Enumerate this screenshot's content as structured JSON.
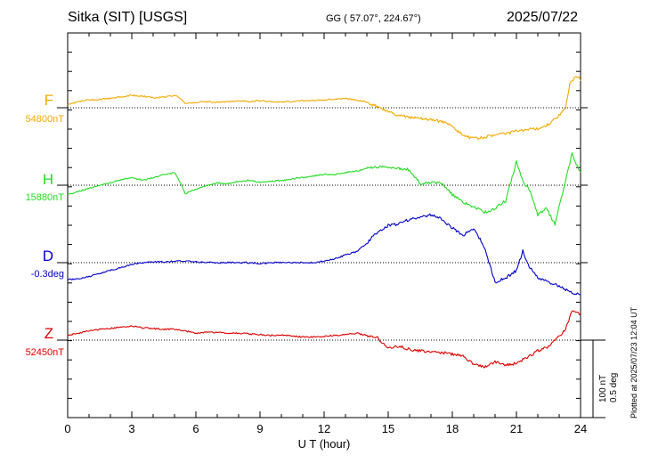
{
  "header": {
    "station": "Sitka (SIT)  [USGS]",
    "coords": "GG ( 57.07°, 224.67°)",
    "date": "2025/07/22"
  },
  "plotted_note": "Plotted at 2025/07/23 12:04 UT",
  "scale": {
    "nt": "100 nT",
    "deg": "0.5 deg"
  },
  "colors": {
    "F": "#f2a900",
    "H": "#22dd22",
    "D": "#0000cc",
    "Z": "#dd0000"
  },
  "channels": [
    {
      "letter": "F",
      "baseline": "54800nT"
    },
    {
      "letter": "H",
      "baseline": "15880nT"
    },
    {
      "letter": "D",
      "baseline": "-0.3deg"
    },
    {
      "letter": "Z",
      "baseline": "52450nT"
    }
  ],
  "chart_data": {
    "type": "line",
    "title": "Sitka (SIT)  [USGS]",
    "xlabel": "U T (hour)",
    "xlim": [
      0,
      24
    ],
    "xticks": [
      0,
      3,
      6,
      9,
      12,
      15,
      18,
      21,
      24
    ],
    "ylabel_units": [
      "nT",
      "deg"
    ],
    "grid": true,
    "series": [
      {
        "name": "F",
        "baseline": "54800nT",
        "x": [
          0,
          0.5,
          1,
          1.5,
          2,
          2.5,
          3,
          3.5,
          4,
          4.5,
          5,
          5.3,
          5.5,
          6,
          6.5,
          7,
          7.5,
          8,
          8.5,
          9,
          9.5,
          10,
          10.5,
          11,
          11.5,
          12,
          12.5,
          13,
          13.5,
          14,
          14.5,
          15,
          15.5,
          16,
          16.5,
          17,
          17.5,
          18,
          18.5,
          19,
          19.5,
          20,
          20.5,
          21,
          21.5,
          22,
          22.5,
          23,
          23.3,
          23.5,
          23.8,
          24
        ],
        "y": [
          4,
          8,
          10,
          11,
          12,
          14,
          16,
          15,
          13,
          14,
          16,
          12,
          5,
          7,
          8,
          7,
          8,
          9,
          8,
          9,
          8,
          7,
          8,
          9,
          9,
          10,
          11,
          12,
          10,
          7,
          1,
          -5,
          -10,
          -12,
          -14,
          -15,
          -18,
          -24,
          -36,
          -40,
          -38,
          -35,
          -34,
          -30,
          -28,
          -27,
          -22,
          -10,
          0,
          30,
          42,
          36
        ]
      },
      {
        "name": "H",
        "baseline": "15880nT",
        "x": [
          0,
          0.5,
          1,
          1.5,
          2,
          2.5,
          3,
          3.5,
          4,
          4.5,
          5,
          5.3,
          5.5,
          6,
          6.5,
          7,
          7.5,
          8,
          8.5,
          9,
          9.5,
          10,
          10.5,
          11,
          11.5,
          12,
          12.5,
          13,
          13.5,
          14,
          14.5,
          15,
          15.5,
          16,
          16.5,
          17,
          17.5,
          18,
          18.5,
          19,
          19.5,
          20,
          20.5,
          21,
          21.3,
          21.6,
          22,
          22.4,
          22.8,
          23.2,
          23.6,
          24
        ],
        "y": [
          -12,
          -8,
          -4,
          0,
          3,
          7,
          10,
          6,
          10,
          14,
          16,
          2,
          -11,
          -5,
          0,
          3,
          2,
          5,
          6,
          4,
          5,
          6,
          8,
          10,
          12,
          14,
          14,
          16,
          18,
          22,
          24,
          22,
          22,
          20,
          2,
          4,
          2,
          -12,
          -22,
          -28,
          -35,
          -30,
          -20,
          30,
          5,
          -5,
          -38,
          -30,
          -50,
          -5,
          40,
          15
        ]
      },
      {
        "name": "D",
        "baseline": "-0.3deg",
        "x": [
          0,
          0.5,
          1,
          1.5,
          2,
          2.5,
          3,
          3.5,
          4,
          4.5,
          5,
          5.5,
          6,
          6.5,
          7,
          7.5,
          8,
          8.5,
          9,
          9.5,
          10,
          10.5,
          11,
          11.5,
          12,
          12.5,
          13,
          13.5,
          14,
          14.5,
          15,
          15.5,
          16,
          16.5,
          17,
          17.5,
          18,
          18.5,
          19,
          19.5,
          20,
          20.5,
          21,
          21.3,
          21.6,
          22,
          22.5,
          23,
          23.5,
          24
        ],
        "y": [
          -22,
          -21,
          -18,
          -14,
          -10,
          -6,
          -2,
          0,
          1,
          1,
          2,
          2,
          1,
          0,
          0,
          0,
          0,
          0,
          -1,
          0,
          0,
          0,
          0,
          0,
          2,
          5,
          10,
          14,
          25,
          40,
          48,
          50,
          56,
          58,
          62,
          56,
          45,
          35,
          45,
          20,
          -25,
          -20,
          -10,
          15,
          -5,
          -20,
          -25,
          -30,
          -38,
          -42
        ]
      },
      {
        "name": "Z",
        "baseline": "52450nT",
        "x": [
          0,
          0.5,
          1,
          1.5,
          2,
          2.5,
          3,
          3.5,
          4,
          4.5,
          5,
          5.5,
          6,
          6.5,
          7,
          7.5,
          8,
          8.5,
          9,
          9.5,
          10,
          10.5,
          11,
          11.5,
          12,
          12.5,
          13,
          13.5,
          14,
          14.5,
          15,
          15.5,
          16,
          16.5,
          17,
          17.5,
          18,
          18.5,
          19,
          19.5,
          20,
          20.5,
          21,
          21.5,
          22,
          22.5,
          23,
          23.3,
          23.6,
          24
        ],
        "y": [
          6,
          9,
          12,
          14,
          15,
          17,
          18,
          16,
          15,
          14,
          14,
          12,
          9,
          10,
          10,
          9,
          9,
          8,
          7,
          6,
          7,
          5,
          4,
          4,
          5,
          6,
          7,
          9,
          6,
          3,
          -10,
          -8,
          -12,
          -14,
          -16,
          -16,
          -18,
          -20,
          -32,
          -34,
          -28,
          -32,
          -30,
          -22,
          -14,
          -8,
          5,
          14,
          38,
          34
        ]
      }
    ]
  }
}
